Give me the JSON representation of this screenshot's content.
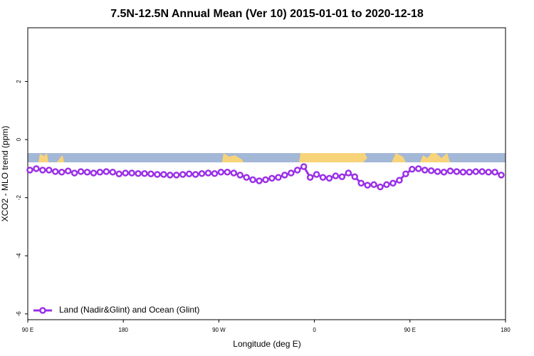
{
  "chart_data": {
    "type": "line",
    "title": "7.5N-12.5N Annual Mean (Ver 10)   2015-01-01 to 2020-12-18",
    "x_label": "Longitude (deg E)",
    "y_label": "XCO2 - MLO trend (ppm)",
    "x": [
      92,
      98,
      104,
      110,
      116,
      122,
      128,
      134,
      140,
      146,
      152,
      158,
      164,
      170,
      176,
      182,
      188,
      194,
      200,
      206,
      212,
      218,
      224,
      230,
      236,
      242,
      248,
      254,
      260,
      266,
      272,
      278,
      284,
      290,
      296,
      302,
      308,
      314,
      320,
      326,
      332,
      338,
      344,
      350,
      356,
      362,
      368,
      374,
      380,
      386,
      392,
      398,
      404,
      410,
      416,
      422,
      428,
      434,
      440,
      446,
      452,
      458,
      464,
      470,
      476,
      482,
      488,
      494,
      500,
      506,
      512,
      518,
      524,
      530,
      536
    ],
    "series": [
      {
        "name": "Land (Nadir&Glint) and Ocean (Glint)",
        "color": "#9b30e8",
        "values": [
          -1.05,
          -1.0,
          -1.05,
          -1.05,
          -1.1,
          -1.12,
          -1.08,
          -1.15,
          -1.1,
          -1.12,
          -1.15,
          -1.12,
          -1.1,
          -1.12,
          -1.18,
          -1.15,
          -1.15,
          -1.17,
          -1.17,
          -1.18,
          -1.2,
          -1.2,
          -1.22,
          -1.22,
          -1.2,
          -1.18,
          -1.2,
          -1.17,
          -1.15,
          -1.17,
          -1.12,
          -1.12,
          -1.15,
          -1.22,
          -1.3,
          -1.38,
          -1.42,
          -1.38,
          -1.33,
          -1.3,
          -1.22,
          -1.15,
          -1.05,
          -0.93,
          -1.3,
          -1.2,
          -1.3,
          -1.33,
          -1.25,
          -1.28,
          -1.15,
          -1.28,
          -1.5,
          -1.57,
          -1.55,
          -1.63,
          -1.55,
          -1.5,
          -1.4,
          -1.18,
          -1.02,
          -1.0,
          -1.05,
          -1.07,
          -1.1,
          -1.12,
          -1.08,
          -1.1,
          -1.12,
          -1.12,
          -1.1,
          -1.1,
          -1.12,
          -1.12,
          -1.22
        ]
      }
    ],
    "xlim": [
      90,
      540
    ],
    "xticks": [
      {
        "value": 90,
        "label": "90 E"
      },
      180,
      {
        "value": 270,
        "label": "90 W"
      },
      {
        "value": 360,
        "label": "0"
      },
      {
        "value": 450,
        "label": "90 E"
      },
      {
        "value": 540,
        "label": "180"
      }
    ],
    "ylim": [
      -6.2,
      3.85
    ],
    "yticks": [
      -6,
      -4,
      -2,
      0,
      2
    ],
    "legend": "bottom-left"
  }
}
